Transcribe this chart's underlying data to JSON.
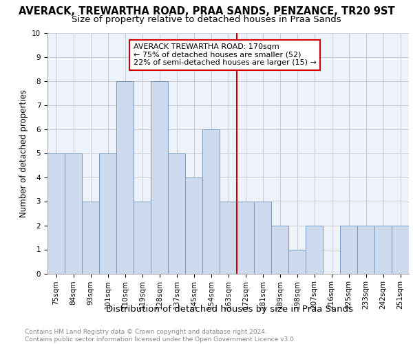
{
  "title": "AVERACK, TREWARTHA ROAD, PRAA SANDS, PENZANCE, TR20 9ST",
  "subtitle": "Size of property relative to detached houses in Praa Sands",
  "xlabel": "Distribution of detached houses by size in Praa Sands",
  "ylabel": "Number of detached properties",
  "categories": [
    "75sqm",
    "84sqm",
    "93sqm",
    "101sqm",
    "110sqm",
    "119sqm",
    "128sqm",
    "137sqm",
    "145sqm",
    "154sqm",
    "163sqm",
    "172sqm",
    "181sqm",
    "189sqm",
    "198sqm",
    "207sqm",
    "216sqm",
    "225sqm",
    "233sqm",
    "242sqm",
    "251sqm"
  ],
  "values": [
    5,
    5,
    3,
    5,
    8,
    3,
    8,
    5,
    4,
    6,
    3,
    3,
    3,
    2,
    1,
    2,
    0,
    2,
    2,
    2,
    2
  ],
  "bar_color": "#cddaed",
  "bar_edge_color": "#7799bb",
  "property_line_index": 11,
  "annotation_text": "AVERACK TREWARTHA ROAD: 170sqm\n← 75% of detached houses are smaller (52)\n22% of semi-detached houses are larger (15) →",
  "annotation_box_color": "#ffffff",
  "annotation_border_color": "#cc0000",
  "vline_color": "#cc0000",
  "ylim": [
    0,
    10
  ],
  "yticks": [
    0,
    1,
    2,
    3,
    4,
    5,
    6,
    7,
    8,
    9,
    10
  ],
  "grid_color": "#cccccc",
  "background_color": "#eef2fa",
  "footer_text": "Contains HM Land Registry data © Crown copyright and database right 2024.\nContains public sector information licensed under the Open Government Licence v3.0.",
  "title_fontsize": 10.5,
  "subtitle_fontsize": 9.5,
  "ylabel_fontsize": 8.5,
  "xlabel_fontsize": 9.5,
  "tick_fontsize": 7.5,
  "annotation_fontsize": 8,
  "footer_fontsize": 6.5
}
